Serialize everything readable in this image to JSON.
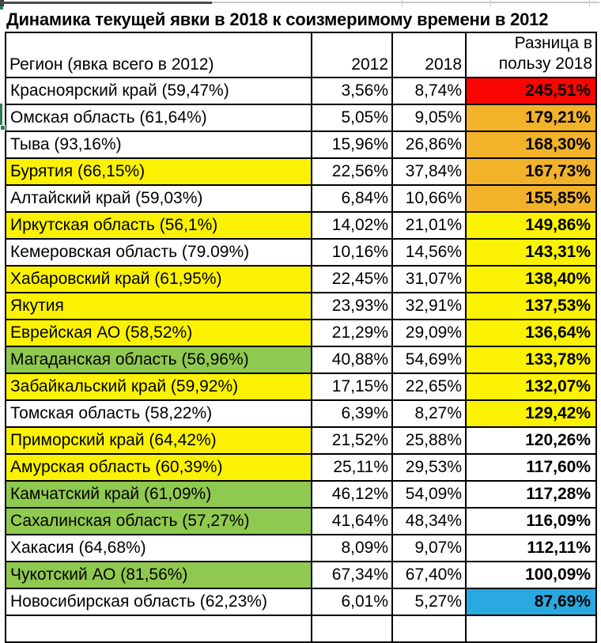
{
  "title": "Динамика текущей явки в 2018 к соизмеримому времени в 2012",
  "colors": {
    "white": "#FFFFFF",
    "yellow": "#FAF202",
    "green": "#90C94F",
    "orange": "#F2B32B",
    "red": "#F90603",
    "blue": "#2AA9E0",
    "selection_green": "#2E7D4F"
  },
  "chart_data": {
    "type": "table",
    "title": "Динамика текущей явки в 2018 к соизмеримому времени в 2012",
    "columns": {
      "region": "Регион (явка всего в 2012)",
      "y2012": "2012",
      "y2018": "2018",
      "diff": "Разница в\nпользу 2018"
    },
    "rows": [
      {
        "region": "Красноярский край (59,47%)",
        "v2012": "3,56%",
        "v2018": "8,74%",
        "diff": "245,51%",
        "region_bg": "white",
        "diff_bg": "red"
      },
      {
        "region": "Омская область (61,64%)",
        "v2012": "5,05%",
        "v2018": "9,05%",
        "diff": "179,21%",
        "region_bg": "white",
        "diff_bg": "orange"
      },
      {
        "region": "Тыва (93,16%)",
        "v2012": "15,96%",
        "v2018": "26,86%",
        "diff": "168,30%",
        "region_bg": "white",
        "diff_bg": "orange"
      },
      {
        "region": "Бурятия (66,15%)",
        "v2012": "22,56%",
        "v2018": "37,84%",
        "diff": "167,73%",
        "region_bg": "yellow",
        "diff_bg": "orange"
      },
      {
        "region": "Алтайский край (59,03%)",
        "v2012": "6,84%",
        "v2018": "10,66%",
        "diff": "155,85%",
        "region_bg": "white",
        "diff_bg": "orange"
      },
      {
        "region": "Иркутская область (56,1%)",
        "v2012": "14,02%",
        "v2018": "21,01%",
        "diff": "149,86%",
        "region_bg": "yellow",
        "diff_bg": "yellow"
      },
      {
        "region": "Кемеровская область (79.09%)",
        "v2012": "10,16%",
        "v2018": "14,56%",
        "diff": "143,31%",
        "region_bg": "white",
        "diff_bg": "yellow"
      },
      {
        "region": "Хабаровский край (61,95%)",
        "v2012": "22,45%",
        "v2018": "31,07%",
        "diff": "138,40%",
        "region_bg": "yellow",
        "diff_bg": "yellow"
      },
      {
        "region": "Якутия",
        "v2012": "23,93%",
        "v2018": "32,91%",
        "diff": "137,53%",
        "region_bg": "yellow",
        "diff_bg": "yellow"
      },
      {
        "region": "Еврейская АО (58,52%)",
        "v2012": "21,29%",
        "v2018": "29,09%",
        "diff": "136,64%",
        "region_bg": "yellow",
        "diff_bg": "yellow"
      },
      {
        "region": "Магаданская область (56,96%)",
        "v2012": "40,88%",
        "v2018": "54,69%",
        "diff": "133,78%",
        "region_bg": "green",
        "diff_bg": "yellow"
      },
      {
        "region": "Забайкальский край (59,92%)",
        "v2012": "17,15%",
        "v2018": "22,65%",
        "diff": "132,07%",
        "region_bg": "yellow",
        "diff_bg": "yellow"
      },
      {
        "region": "Томская область (58,22%)",
        "v2012": "6,39%",
        "v2018": "8,27%",
        "diff": "129,42%",
        "region_bg": "white",
        "diff_bg": "yellow"
      },
      {
        "region": "Приморский край (64,42%)",
        "v2012": "21,52%",
        "v2018": "25,88%",
        "diff": "120,26%",
        "region_bg": "yellow",
        "diff_bg": "white"
      },
      {
        "region": "Амурская область (60,39%)",
        "v2012": "25,11%",
        "v2018": "29,53%",
        "diff": "117,60%",
        "region_bg": "yellow",
        "diff_bg": "white"
      },
      {
        "region": "Камчатский край (61,09%)",
        "v2012": "46,12%",
        "v2018": "54,09%",
        "diff": "117,28%",
        "region_bg": "green",
        "diff_bg": "white"
      },
      {
        "region": "Сахалинская область (57,27%)",
        "v2012": "41,64%",
        "v2018": "48,34%",
        "diff": "116,09%",
        "region_bg": "green",
        "diff_bg": "white"
      },
      {
        "region": "Хакасия (64,68%)",
        "v2012": "8,09%",
        "v2018": "9,07%",
        "diff": "112,11%",
        "region_bg": "white",
        "diff_bg": "white"
      },
      {
        "region": "Чукотский АО (81,56%)",
        "v2012": "67,34%",
        "v2018": "67,40%",
        "diff": "100,09%",
        "region_bg": "green",
        "diff_bg": "white"
      },
      {
        "region": "Новосибирская область (62,23%)",
        "v2012": "6,01%",
        "v2018": "5,27%",
        "diff": "87,69%",
        "region_bg": "white",
        "diff_bg": "blue"
      }
    ]
  }
}
